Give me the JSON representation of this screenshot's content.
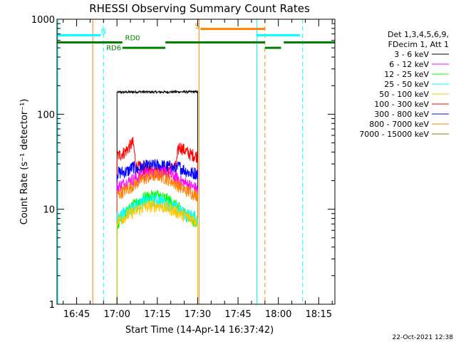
{
  "chart_data": {
    "type": "line",
    "title": "RHESSI Observing Summary Count Rates",
    "xlabel": "Start Time (14-Apr-14 16:37:42)",
    "ylabel": "Count Rate (s⁻¹ detector⁻¹)",
    "y_scale": "log",
    "ylim": [
      1,
      1000
    ],
    "xlim": [
      "16:37:42",
      "18:21:00"
    ],
    "y_ticks": [
      {
        "value": 1,
        "label": "1"
      },
      {
        "value": 10,
        "label": "10"
      },
      {
        "value": 100,
        "label": "100"
      },
      {
        "value": 1000,
        "label": "1000"
      }
    ],
    "x_ticks": [
      {
        "value": "16:45",
        "label": "16:45"
      },
      {
        "value": "17:00",
        "label": "17:00"
      },
      {
        "value": "17:15",
        "label": "17:15"
      },
      {
        "value": "17:30",
        "label": "17:30"
      },
      {
        "value": "17:45",
        "label": "17:45"
      },
      {
        "value": "18:00",
        "label": "18:00"
      },
      {
        "value": "18:15",
        "label": "18:15"
      }
    ],
    "legend": {
      "position": "right",
      "header": [
        "Det 1,3,4,5,6,9,",
        "FDecim 1, Att 1"
      ],
      "entries": [
        {
          "label": "3 - 6 keV",
          "color": "#000000"
        },
        {
          "label": "6 - 12 keV",
          "color": "#ff00ff"
        },
        {
          "label": "12 - 25 keV",
          "color": "#00ff00"
        },
        {
          "label": "25 - 50 keV",
          "color": "#00ffff"
        },
        {
          "label": "50 - 100 keV",
          "color": "#ffc800"
        },
        {
          "label": "100 - 300 keV",
          "color": "#ff0000"
        },
        {
          "label": "300 - 800 keV",
          "color": "#0000ff"
        },
        {
          "label": "800 - 7000 keV",
          "color": "#ff8000"
        },
        {
          "label": "7000 - 15000 keV",
          "color": "#808000"
        }
      ]
    },
    "series": [
      {
        "legend_index": 0,
        "color": "#000000",
        "start": "17:00",
        "end": "17:30",
        "points": [
          [
            "17:00",
            170
          ],
          [
            "17:08",
            172
          ],
          [
            "17:15",
            171
          ],
          [
            "17:22",
            172
          ],
          [
            "17:30",
            172
          ]
        ]
      },
      {
        "legend_index": 5,
        "color": "#ff0000",
        "start": "17:00",
        "end": "17:30",
        "points": [
          [
            "17:00",
            36
          ],
          [
            "17:03",
            40
          ],
          [
            "17:05",
            47
          ],
          [
            "17:06",
            50
          ],
          [
            "17:07",
            28
          ],
          [
            "17:12",
            26
          ],
          [
            "17:15",
            25
          ],
          [
            "17:18",
            26
          ],
          [
            "17:22",
            28
          ],
          [
            "17:23",
            46
          ],
          [
            "17:27",
            38
          ],
          [
            "17:30",
            36
          ]
        ]
      },
      {
        "legend_index": 6,
        "color": "#0000ff",
        "start": "17:00",
        "end": "17:30",
        "points": [
          [
            "17:00",
            24
          ],
          [
            "17:04",
            25
          ],
          [
            "17:06",
            28
          ],
          [
            "17:07",
            26
          ],
          [
            "17:10",
            28
          ],
          [
            "17:15",
            29
          ],
          [
            "17:20",
            28
          ],
          [
            "17:22",
            26
          ],
          [
            "17:23",
            28
          ],
          [
            "17:27",
            24
          ],
          [
            "17:30",
            24
          ]
        ]
      },
      {
        "legend_index": 1,
        "color": "#ff00ff",
        "start": "17:00",
        "end": "17:30",
        "points": [
          [
            "17:00",
            17
          ],
          [
            "17:05",
            20
          ],
          [
            "17:10",
            23
          ],
          [
            "17:15",
            25
          ],
          [
            "17:20",
            23
          ],
          [
            "17:25",
            19
          ],
          [
            "17:30",
            16
          ]
        ]
      },
      {
        "legend_index": 7,
        "color": "#ff8000",
        "start": "17:00",
        "end": "17:30",
        "points": [
          [
            "17:00",
            14
          ],
          [
            "17:05",
            17
          ],
          [
            "17:10",
            21
          ],
          [
            "17:15",
            23
          ],
          [
            "17:20",
            20
          ],
          [
            "17:25",
            16
          ],
          [
            "17:30",
            14
          ]
        ]
      },
      {
        "legend_index": 2,
        "color": "#00ff00",
        "start": "17:00",
        "end": "17:30",
        "points": [
          [
            "17:00",
            7
          ],
          [
            "17:05",
            10
          ],
          [
            "17:10",
            13
          ],
          [
            "17:15",
            14
          ],
          [
            "17:20",
            12
          ],
          [
            "17:25",
            9
          ],
          [
            "17:30",
            7
          ]
        ]
      },
      {
        "legend_index": 3,
        "color": "#00ffff",
        "start": "17:00",
        "end": "17:30",
        "points": [
          [
            "17:00",
            8
          ],
          [
            "17:05",
            10
          ],
          [
            "17:10",
            12
          ],
          [
            "17:15",
            12.5
          ],
          [
            "17:20",
            11
          ],
          [
            "17:25",
            9
          ],
          [
            "17:30",
            8
          ]
        ]
      },
      {
        "legend_index": 4,
        "color": "#ffc800",
        "start": "17:00",
        "end": "17:30",
        "points": [
          [
            "17:00",
            7.5
          ],
          [
            "17:05",
            9
          ],
          [
            "17:10",
            10.5
          ],
          [
            "17:15",
            11
          ],
          [
            "17:20",
            10
          ],
          [
            "17:25",
            8.5
          ],
          [
            "17:30",
            7.5
          ]
        ]
      }
    ],
    "vertical_lines": [
      {
        "time": "16:38",
        "color": "#00ffff",
        "style": "solid"
      },
      {
        "time": "16:55",
        "color": "#00ffff",
        "style": "dashed"
      },
      {
        "time": "16:51",
        "color": "#ff8000",
        "style": "solid"
      },
      {
        "time": "17:30:30",
        "color": "#ff8000",
        "style": "solid"
      },
      {
        "time": "17:52",
        "color": "#00ffff",
        "style": "solid"
      },
      {
        "time": "17:55",
        "color": "#ff8000",
        "style": "dashed"
      },
      {
        "time": "18:09",
        "color": "#00ffff",
        "style": "dashed"
      }
    ],
    "annotations": [
      {
        "label": "N",
        "color": "#00ffff",
        "time": "16:54",
        "value": 700,
        "bars": [
          {
            "start": "16:37:42",
            "end": "16:54",
            "value": 680
          },
          {
            "start": "17:52",
            "end": "18:08",
            "value": 680
          }
        ]
      },
      {
        "label": "S",
        "color": "#ff8000",
        "time": "17:29",
        "value": 800,
        "bars": [
          {
            "start": "17:31",
            "end": "17:55",
            "value": 790
          }
        ]
      },
      {
        "label": "RD0",
        "color": "#008000",
        "time": "17:03",
        "value": 600,
        "bars": [
          {
            "start": "16:37:42",
            "end": "17:02",
            "value": 570
          },
          {
            "start": "17:18",
            "end": "17:55",
            "value": 570
          },
          {
            "start": "18:02",
            "end": "18:21",
            "value": 570
          }
        ]
      },
      {
        "label": "RD6",
        "color": "#008000",
        "time": "16:56",
        "value": 470,
        "bars": [
          {
            "start": "17:02",
            "end": "17:18",
            "value": 500
          },
          {
            "start": "17:55",
            "end": "18:01",
            "value": 500
          }
        ]
      }
    ]
  },
  "footer": {
    "date": "22-Oct-2021 12:38"
  }
}
